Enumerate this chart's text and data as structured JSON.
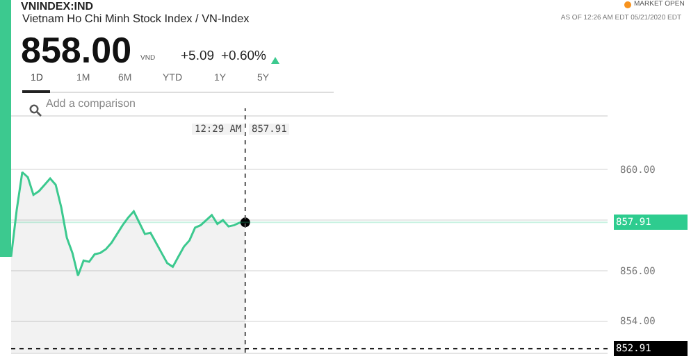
{
  "chart_data": {
    "type": "area",
    "title": "VNINDEX:IND",
    "subtitle": "Vietnam Ho Chi Minh Stock Index / VN-Index",
    "annotations": [
      "858.00",
      "VND",
      "+5.09",
      "+0.60%",
      "1D",
      "1M",
      "6M",
      "YTD",
      "1Y",
      "5Y",
      "Add a comparison",
      "MARKET OPEN",
      "AS OF 12:26 AM EDT 05/21/2020 EDT",
      "12:29 AM",
      "857.91"
    ],
    "categories": [
      null,
      null,
      null,
      null,
      null,
      null,
      null,
      null,
      null,
      null,
      null,
      null,
      null,
      null,
      null,
      null,
      null,
      null,
      null,
      null,
      null,
      null,
      null,
      null,
      null,
      null,
      null,
      null,
      null,
      null,
      null,
      null,
      null,
      null,
      null,
      null,
      null,
      null,
      null,
      null,
      null,
      null,
      null,
      null,
      null,
      null,
      null,
      null,
      null,
      null,
      null,
      null,
      null,
      null,
      null,
      null,
      null,
      null,
      null,
      null,
      null,
      null,
      null,
      null,
      null,
      null,
      null,
      null,
      null,
      null,
      null,
      null,
      null,
      null,
      null,
      null,
      null,
      null,
      null,
      null,
      null,
      null,
      null,
      null,
      null,
      null,
      null,
      null,
      null,
      null,
      null,
      null,
      null,
      null,
      null,
      null,
      null,
      null,
      null,
      null,
      null,
      null,
      null,
      null,
      null,
      null,
      null,
      null
    ],
    "series": [
      {
        "color": "#3cc98f",
        "values": [
          856.55,
          858.4,
          859.9,
          859.7,
          859.0,
          859.15,
          859.4,
          859.65,
          859.4,
          858.5,
          857.3,
          856.7,
          855.8,
          856.4,
          856.35,
          856.65,
          856.7,
          856.85,
          857.1,
          857.45,
          857.8,
          858.1,
          858.35,
          857.9,
          857.45,
          857.5,
          857.1,
          856.7,
          856.3,
          856.15,
          856.55,
          856.95,
          857.2,
          857.7,
          857.8,
          858.0,
          858.2,
          857.85,
          858.0,
          857.75,
          857.8,
          857.9,
          857.91,
          null,
          null,
          null,
          null,
          null,
          null,
          null,
          null,
          null,
          null,
          null,
          null,
          null,
          null,
          null,
          null,
          null,
          null,
          null,
          null,
          null,
          null,
          null,
          null,
          null,
          null,
          null,
          null,
          null,
          null,
          null,
          null,
          null,
          null,
          null,
          null,
          null,
          null,
          null,
          null,
          null,
          null,
          null,
          null,
          null,
          null,
          null,
          null,
          null,
          null,
          null,
          null,
          null,
          null,
          null,
          null,
          null,
          null,
          null,
          null,
          null,
          null,
          null,
          null,
          null
        ]
      },
      {
        "type": "scatter",
        "color": "#000000",
        "marker": "circle",
        "values": [
          null,
          null,
          null,
          null,
          null,
          null,
          null,
          null,
          null,
          null,
          null,
          null,
          null,
          null,
          null,
          null,
          null,
          null,
          null,
          null,
          null,
          null,
          null,
          null,
          null,
          null,
          null,
          null,
          null,
          null,
          null,
          null,
          null,
          null,
          null,
          null,
          null,
          null,
          null,
          null,
          null,
          null,
          857.91,
          null,
          null,
          null,
          null,
          null,
          null,
          null,
          null,
          null,
          null,
          null,
          null,
          null,
          null,
          null,
          null,
          null,
          null,
          null,
          null,
          null,
          null,
          null,
          null,
          null,
          null,
          null,
          null,
          null,
          null,
          null,
          null,
          null,
          null,
          null,
          null,
          null,
          null,
          null,
          null,
          null,
          null,
          null,
          null,
          null,
          null,
          null,
          null,
          null,
          null,
          null,
          null,
          null,
          null,
          null,
          null,
          null,
          null,
          null,
          null,
          null,
          null,
          null,
          null,
          null
        ]
      }
    ],
    "ylim": [
      852.75,
      862.1
    ],
    "yticks": [
      {
        "value": 854,
        "label": "854.00"
      },
      {
        "value": 856,
        "label": "856.00"
      },
      {
        "value": 858,
        "label": null
      },
      {
        "value": 860,
        "label": "860.00"
      }
    ],
    "grid": "y",
    "tick_labels": "y",
    "ref_lines": [
      {
        "axis": "y",
        "value": 852.91,
        "label": "852.91",
        "color": "#000000",
        "line_style": "dotted"
      },
      {
        "axis": "y",
        "value": 857.91,
        "label": "857.91",
        "color": "#2ecc8f",
        "line_style": "solid"
      }
    ]
  }
}
